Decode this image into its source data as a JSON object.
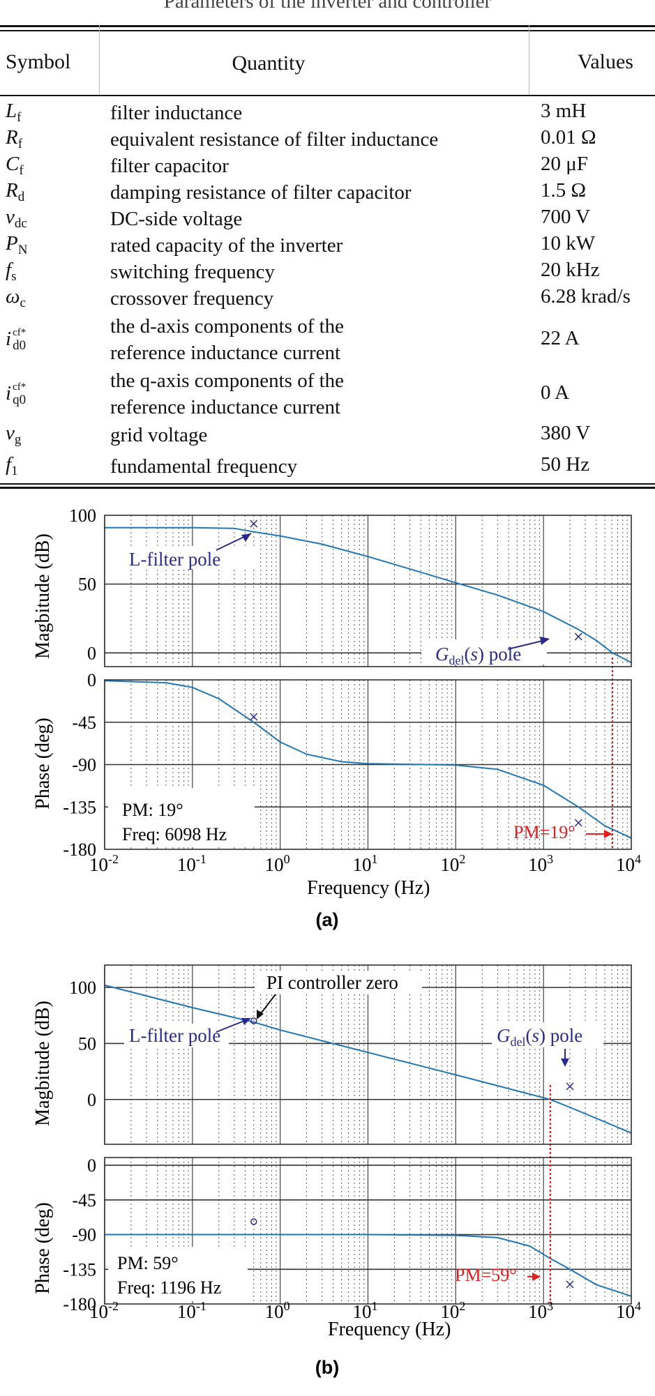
{
  "table": {
    "caption": "Parameters of the inverter and controller",
    "headers": {
      "symbol": "Symbol",
      "quantity": "Quantity",
      "values": "Values"
    },
    "rows": [
      {
        "sym": "L",
        "sub": "f",
        "sup": "",
        "quantity": "filter inductance",
        "value": "3 mH"
      },
      {
        "sym": "R",
        "sub": "f",
        "sup": "",
        "quantity": "equivalent resistance of filter inductance",
        "value": "0.01 Ω"
      },
      {
        "sym": "C",
        "sub": "f",
        "sup": "",
        "quantity": "filter capacitor",
        "value": "20 μF"
      },
      {
        "sym": "R",
        "sub": "d",
        "sup": "",
        "quantity": "damping resistance of filter capacitor",
        "value": "1.5 Ω"
      },
      {
        "sym": "v",
        "sub": "dc",
        "sup": "",
        "quantity": "DC-side voltage",
        "value": "700 V"
      },
      {
        "sym": "P",
        "sub": "N",
        "sup": "",
        "quantity": "rated capacity of the inverter",
        "value": "10 kW"
      },
      {
        "sym": "f",
        "sub": "s",
        "sup": "",
        "quantity": "switching frequency",
        "value": "20 kHz"
      },
      {
        "sym": "ω",
        "sub": "c",
        "sup": "",
        "quantity": "crossover frequency",
        "value": "6.28 krad/s"
      },
      {
        "sym": "i",
        "sub": "d0",
        "sup": "cf*",
        "quantity": "the d-axis components of the reference inductance current",
        "value": "22 A"
      },
      {
        "sym": "i",
        "sub": "q0",
        "sup": "cf*",
        "quantity": "the q-axis components of the reference inductance current",
        "value": "0 A"
      },
      {
        "sym": "v",
        "sub": "g",
        "sup": "",
        "quantity": "grid voltage",
        "value": "380 V"
      },
      {
        "sym": "f",
        "sub": "1",
        "sup": "",
        "quantity": "fundamental frequency",
        "value": "50 Hz"
      }
    ]
  },
  "chart_data": [
    {
      "type": "line",
      "panel": "(a)",
      "xscale": "log",
      "xlim": [
        0.01,
        10000
      ],
      "xticks": [
        "10^-2",
        "10^-1",
        "10^0",
        "10^1",
        "10^2",
        "10^3",
        "10^4"
      ],
      "xlabel": "Frequency (Hz)",
      "magnitude": {
        "ylabel": "Magbitude (dB)",
        "ylim": [
          -10,
          100
        ],
        "yticks": [
          "100",
          "50",
          "0"
        ],
        "x": [
          0.01,
          0.1,
          0.3,
          0.5,
          1,
          3,
          10,
          30,
          100,
          300,
          1000,
          2500,
          4000,
          6098,
          10000
        ],
        "y": [
          91,
          91,
          90.5,
          88,
          85,
          79,
          70,
          61,
          51,
          42,
          30,
          17,
          9,
          0,
          -7
        ],
        "annotations": [
          "L-filter pole",
          "Gdel(s) pole"
        ]
      },
      "phase": {
        "ylabel": "Phase (deg)",
        "ylim": [
          -180,
          0
        ],
        "yticks": [
          "0",
          "-45",
          "-90",
          "-135",
          "-180"
        ],
        "x": [
          0.01,
          0.05,
          0.1,
          0.2,
          0.5,
          1,
          2,
          5,
          10,
          100,
          300,
          1000,
          2500,
          5000,
          10000
        ],
        "y": [
          -1,
          -3,
          -8,
          -20,
          -45,
          -66,
          -79,
          -87,
          -89,
          -90.5,
          -95,
          -112,
          -135,
          -155,
          -168
        ],
        "annotations": [
          "PM: 19°",
          "Freq: 6098 Hz",
          "PM=19°"
        ]
      },
      "crossover_hz": 6098
    },
    {
      "type": "line",
      "panel": "(b)",
      "xscale": "log",
      "xlim": [
        0.01,
        10000
      ],
      "xticks": [
        "10^-2",
        "10^-1",
        "10^0",
        "10^1",
        "10^2",
        "10^3",
        "10^4"
      ],
      "xlabel": "Frequency (Hz)",
      "magnitude": {
        "ylabel": "Magbitude (dB)",
        "ylim": [
          -40,
          120
        ],
        "yticks": [
          "100",
          "50",
          "0"
        ],
        "x": [
          0.01,
          0.1,
          0.5,
          1,
          10,
          100,
          1196,
          2000,
          5000,
          10000
        ],
        "y": [
          102,
          82,
          69,
          62,
          42,
          22,
          0,
          -7,
          -20,
          -30
        ],
        "annotations": [
          "PI controller zero",
          "L-filter pole",
          "Gdel(s) pole"
        ]
      },
      "phase": {
        "ylabel": "Phase (deg)",
        "ylim": [
          -180,
          10
        ],
        "yticks": [
          "0",
          "-45",
          "-90",
          "-135",
          "-180"
        ],
        "x": [
          0.01,
          1,
          10,
          100,
          300,
          700,
          1196,
          2000,
          4000,
          10000
        ],
        "y": [
          -90,
          -90,
          -90,
          -91,
          -94,
          -105,
          -121,
          -135,
          -155,
          -170
        ],
        "annotations": [
          "PM: 59°",
          "Freq: 1196 Hz",
          "PM=59°"
        ]
      },
      "crossover_hz": 1196
    }
  ],
  "figure_labels": {
    "a": "(a)",
    "b": "(b)"
  },
  "colors": {
    "curve": "#1f77b4",
    "pm": "#e02020",
    "annot": "#2a2a8c",
    "grid": "#333333"
  }
}
